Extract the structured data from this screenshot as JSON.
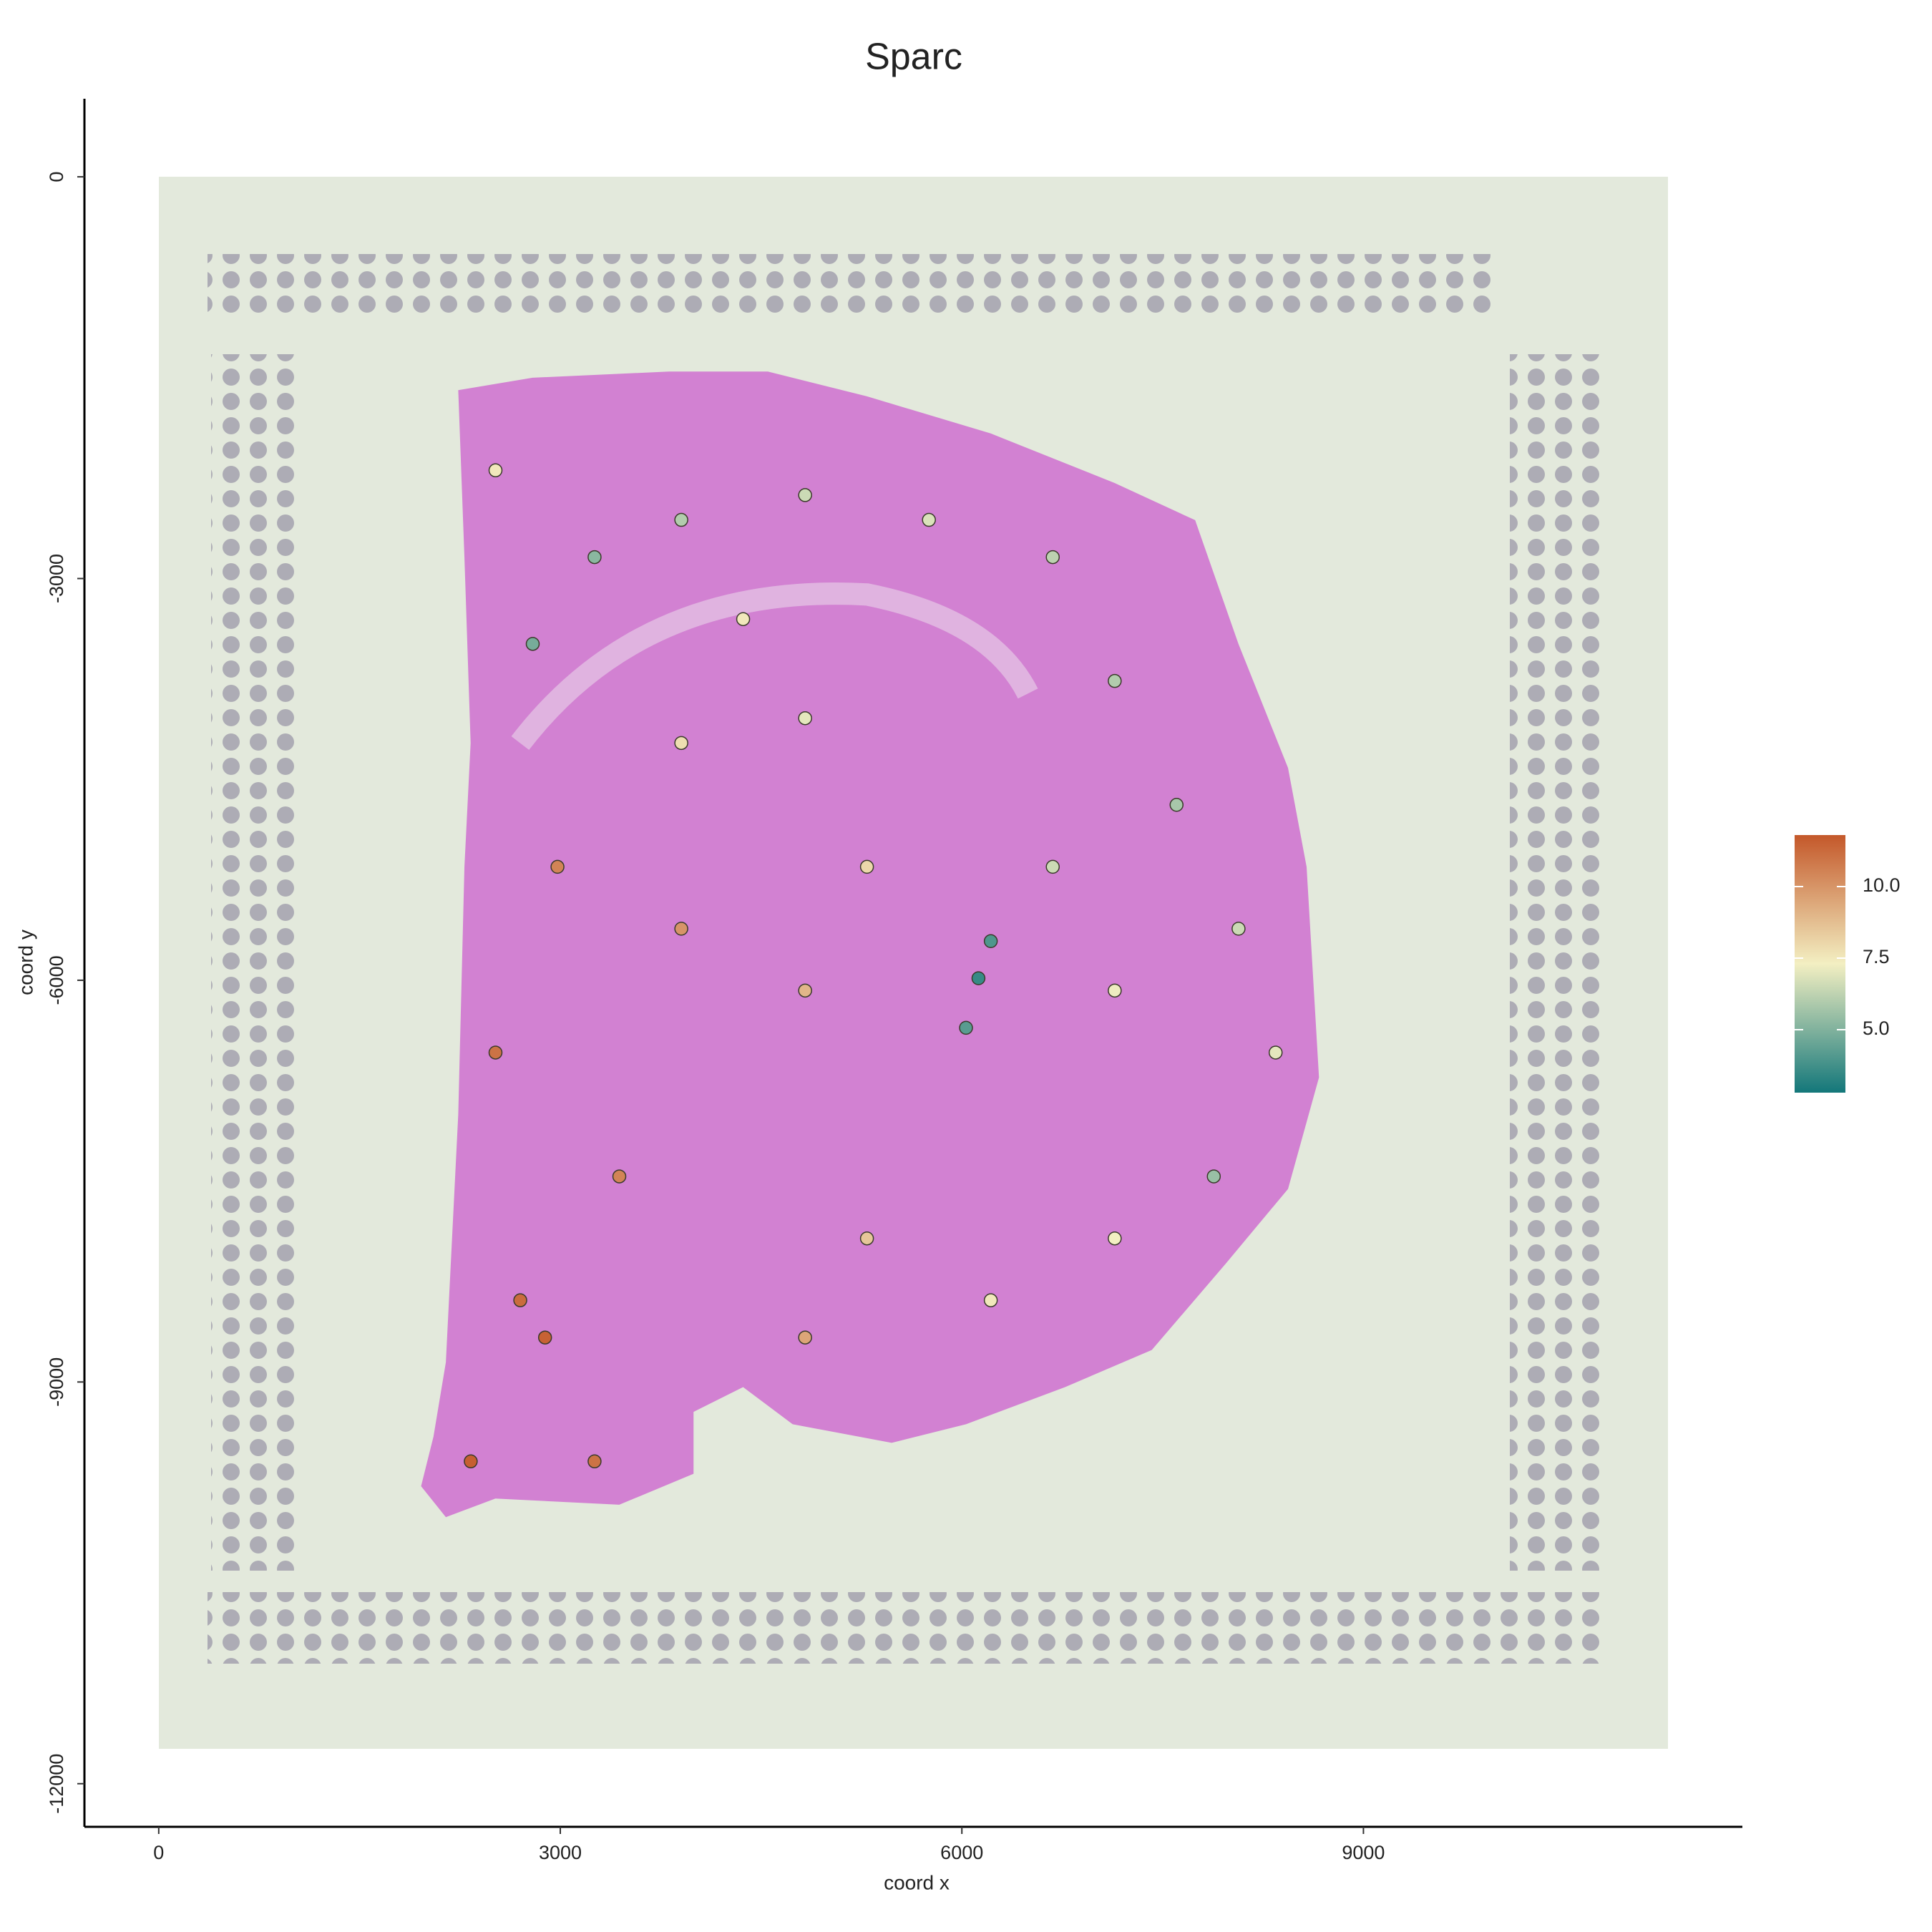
{
  "chart_data": {
    "type": "scatter",
    "title": "Sparc",
    "x_label": "coord x",
    "y_label": "coord y",
    "xlim": [
      -555,
      11831
    ],
    "ylim": [
      -12322,
      583
    ],
    "xticks": [
      0,
      3000,
      6000,
      9000
    ],
    "yticks": [
      0,
      -3000,
      -6000,
      -9000,
      -12000
    ],
    "clim": [
      2.8,
      11.8
    ],
    "cticks": [
      {
        "value": 5,
        "label": "5.0"
      },
      {
        "value": 7.5,
        "label": "7.5"
      },
      {
        "value": 10,
        "label": "10.0"
      }
    ],
    "colors": [
      "#13777a",
      "#f3efc2",
      "#c4582a"
    ],
    "x": [
      6124,
      6216,
      6031,
      3256,
      2794,
      3904,
      4829,
      5754,
      6679,
      7142,
      7604,
      8067,
      8344,
      7882,
      7142,
      6216,
      5291,
      4829,
      4366,
      3904,
      4829,
      5291,
      2979,
      3904,
      4829,
      2516,
      3441,
      2701,
      2886,
      2331,
      3256,
      6679,
      7142,
      2516
    ],
    "y": [
      -5985,
      -5708,
      -6355,
      -2840,
      -3488,
      -2562,
      -2377,
      -2562,
      -2840,
      -3765,
      -4690,
      -5615,
      -6540,
      -7465,
      -7928,
      -8390,
      -7928,
      -8668,
      -3303,
      -4228,
      -4043,
      -5153,
      -5153,
      -5615,
      -6077,
      -6540,
      -7465,
      -8390,
      -8668,
      -9593,
      -9593,
      -5153,
      -6077,
      -2192
    ],
    "values": [
      3.5,
      4.0,
      4.2,
      5.2,
      4.8,
      6.0,
      6.5,
      6.8,
      6.2,
      6.0,
      5.8,
      6.5,
      7.0,
      5.5,
      7.3,
      7.5,
      8.5,
      9.5,
      7.5,
      7.8,
      7.0,
      8.0,
      10.5,
      10.0,
      9.0,
      11.0,
      10.5,
      11.2,
      11.5,
      11.6,
      11.0,
      6.5,
      7.2,
      7.5
    ]
  }
}
